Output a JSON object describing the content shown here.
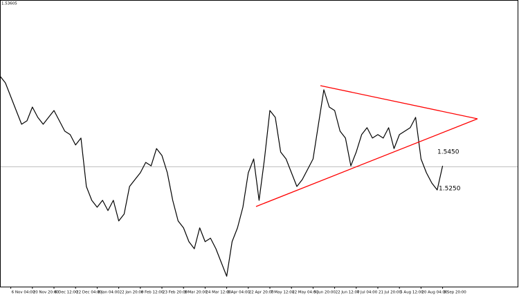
{
  "chart_data": {
    "type": "line",
    "price_line": 1.53605,
    "annotations": [
      "1.5450",
      "1.5250"
    ],
    "categories": [
      null,
      null,
      "6 Nov 04:00",
      null,
      null,
      null,
      "20 Nov 20:00",
      null,
      null,
      null,
      "6 Dec 12:00",
      null,
      null,
      null,
      "22 Dec 04:00",
      null,
      null,
      null,
      "8 Jan 04:00",
      null,
      null,
      null,
      "22 Jan 20:00",
      null,
      null,
      null,
      "8 Feb 12:00",
      null,
      null,
      null,
      "23 Feb 20:00",
      null,
      null,
      null,
      "9 Mar 20:00",
      null,
      null,
      null,
      "24 Mar 12:00",
      null,
      null,
      null,
      "8 Apr 04:00",
      null,
      null,
      null,
      "22 Apr 20:00",
      null,
      null,
      null,
      "7 May 12:00",
      null,
      null,
      null,
      "22 May 04:00",
      null,
      null,
      null,
      "5 Jun 20:00",
      null,
      null,
      null,
      "22 Jun 12:00",
      null,
      null,
      null,
      "7 Jul 04:00",
      null,
      null,
      null,
      "21 Jul 20:00",
      null,
      null,
      null,
      "5 Aug 12:00",
      null,
      null,
      null,
      "20 Aug 04:00",
      null,
      null,
      null,
      "3 Sep 20:00"
    ],
    "values": [
      1.5861,
      1.5823,
      1.5747,
      1.5671,
      1.5595,
      1.5614,
      1.569,
      1.5633,
      1.5595,
      1.5633,
      1.5671,
      1.5614,
      1.5557,
      1.5538,
      1.5481,
      1.5519,
      1.5252,
      1.5176,
      1.5138,
      1.5176,
      1.5119,
      1.5176,
      1.5062,
      1.51,
      1.5252,
      1.529,
      1.5328,
      1.5385,
      1.5366,
      1.5461,
      1.5423,
      1.5328,
      1.5176,
      1.5062,
      1.5024,
      1.4948,
      1.4909,
      1.5024,
      1.4948,
      1.4967,
      1.4909,
      1.4833,
      1.4757,
      1.4948,
      1.5024,
      1.5138,
      1.5328,
      1.5404,
      1.5176,
      1.5404,
      1.5671,
      1.5633,
      1.5442,
      1.5404,
      1.5328,
      1.5252,
      1.529,
      1.5347,
      1.5404,
      1.5595,
      1.5785,
      1.569,
      1.5671,
      1.5557,
      1.5519,
      1.5366,
      1.5442,
      1.5538,
      1.5576,
      1.5519,
      1.5538,
      1.5519,
      1.5576,
      1.5461,
      1.5538,
      1.5557,
      1.5576,
      1.5633,
      1.5404,
      1.5328,
      1.5271,
      1.5233,
      1.5366
    ],
    "color": "#000000",
    "ylim": [
      1.47,
      1.628
    ]
  }
}
